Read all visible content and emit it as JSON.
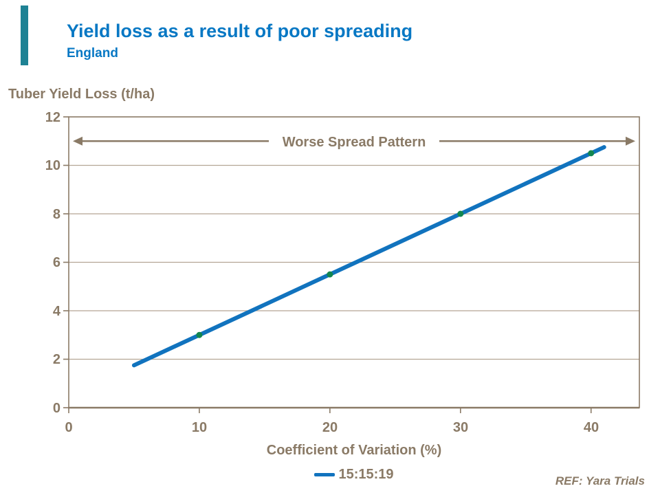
{
  "page": {
    "title": "Yield loss as a result of poor spreading",
    "subtitle": "England",
    "ref": "REF: Yara Trials"
  },
  "colors": {
    "title_blue": "#0878c4",
    "line_blue": "#1173be",
    "marker_green": "#12864f",
    "text_brown": "#8a7a66",
    "grid_brown": "#b3a594",
    "accent_teal": "#1e8294"
  },
  "chart_data": {
    "type": "line",
    "title": "",
    "ylabel": "Tuber Yield Loss (t/ha)",
    "xlabel": "Coefficient of Variation (%)",
    "annotation": "Worse Spread Pattern",
    "xlim": [
      0,
      43.7
    ],
    "ylim": [
      0,
      12
    ],
    "xticks": [
      0,
      10,
      20,
      30,
      40
    ],
    "yticks": [
      0,
      2,
      4,
      6,
      8,
      10,
      12
    ],
    "grid": "horizontal",
    "legend_position": "bottom",
    "legend": [
      {
        "name": "15:15:19",
        "color": "#1173be"
      }
    ],
    "series": [
      {
        "name": "15:15:19",
        "line_endpoints": {
          "x": [
            5,
            41
          ],
          "y": [
            1.75,
            10.75
          ]
        },
        "markers": [
          [
            10,
            3
          ],
          [
            20,
            5.5
          ],
          [
            30,
            8
          ],
          [
            40,
            10.5
          ]
        ]
      }
    ]
  }
}
